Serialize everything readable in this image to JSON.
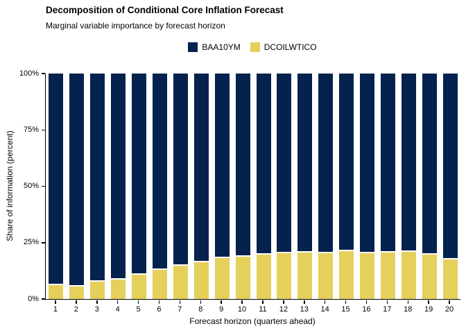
{
  "header": {
    "title": "Decomposition of Conditional Core Inflation Forecast",
    "subtitle": "Marginal variable importance by forecast horizon"
  },
  "colors": {
    "baa10ym": "#04224d",
    "dcoilwtico": "#e5d05c",
    "axis": "#000000",
    "background": "#ffffff",
    "segment_separator": "#ffffff"
  },
  "chart_data": {
    "type": "bar",
    "subtype": "stacked-percent",
    "title": "Decomposition of Conditional Core Inflation Forecast",
    "subtitle": "Marginal variable importance by forecast horizon",
    "xlabel": "Forecast horizon (quarters ahead)",
    "ylabel": "Share of information (percent)",
    "ylim": [
      0,
      100
    ],
    "yticks": [
      {
        "value": 0,
        "label": "0%"
      },
      {
        "value": 25,
        "label": "25%"
      },
      {
        "value": 50,
        "label": "50%"
      },
      {
        "value": 75,
        "label": "75%"
      },
      {
        "value": 100,
        "label": "100%"
      }
    ],
    "categories": [
      "1",
      "2",
      "3",
      "4",
      "5",
      "6",
      "7",
      "8",
      "9",
      "10",
      "11",
      "12",
      "13",
      "14",
      "15",
      "16",
      "17",
      "18",
      "19",
      "20"
    ],
    "series": [
      {
        "name": "BAA10YM",
        "color": "#04224d",
        "position": "top",
        "values": [
          93.3,
          93.7,
          91.8,
          90.7,
          88.7,
          86.5,
          84.6,
          83.0,
          81.3,
          80.5,
          79.7,
          79.2,
          78.8,
          79.0,
          78.2,
          79.0,
          78.8,
          78.6,
          79.6,
          81.9
        ]
      },
      {
        "name": "DCOILWTICO",
        "color": "#e5d05c",
        "position": "bottom",
        "values": [
          6.7,
          6.3,
          8.2,
          9.3,
          11.3,
          13.5,
          15.4,
          17.0,
          18.7,
          19.5,
          20.3,
          20.8,
          21.2,
          21.0,
          21.8,
          21.0,
          21.2,
          21.4,
          20.4,
          18.1
        ]
      }
    ],
    "legend_position": "top-center",
    "grid": false
  },
  "layout_note": "stacked bar chart, BAA10YM navy on top, DCOILWTICO gold on bottom"
}
